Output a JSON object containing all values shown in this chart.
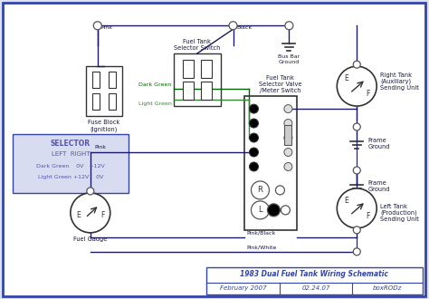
{
  "bg_color": "#dde0ee",
  "border_color": "#3344aa",
  "inner_bg": "#ffffff",
  "wire_color": "#1a1a66",
  "label_color": "#1a1a44",
  "green_color": "#004400",
  "selector_bg": "#d8dcf0",
  "title": "1983 Dual Fuel Tank Wiring Schematic",
  "sub_left": "February 2007",
  "sub_mid": "02.24.07",
  "sub_right": "boxRODz",
  "figw": 4.74,
  "figh": 3.3,
  "dpi": 100
}
